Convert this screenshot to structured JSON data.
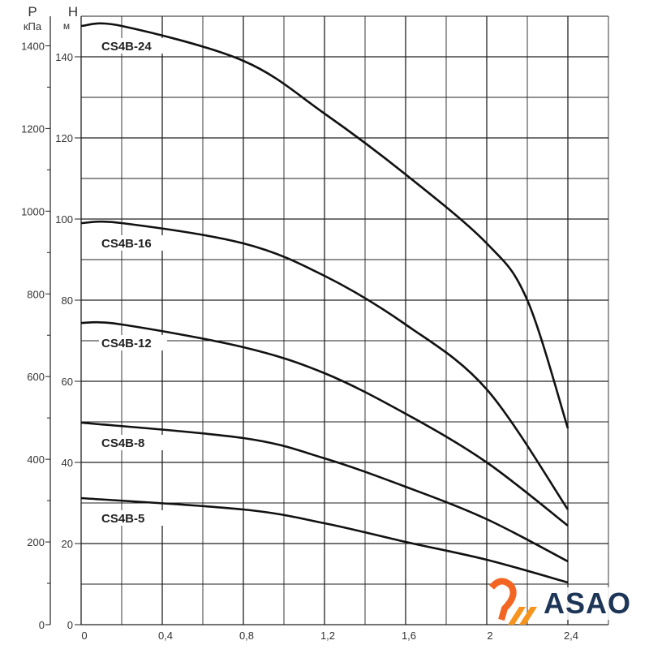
{
  "chart_data": {
    "type": "line",
    "xlim": [
      0,
      2.6
    ],
    "ylim": [
      0,
      150
    ],
    "x_ticks": [
      "0",
      "0,4",
      "0,8",
      "1,2",
      "1,6",
      "2",
      "2,4"
    ],
    "y_ticks": [
      "0",
      "20",
      "40",
      "60",
      "80",
      "100",
      "120",
      "140"
    ],
    "y2_ticks": [
      "0",
      "200",
      "400",
      "600",
      "800",
      "1000",
      "1200",
      "1400"
    ],
    "ylabel": "H",
    "yunit": "м",
    "y2label": "P",
    "y2unit": "кПа",
    "grid": true,
    "series": [
      {
        "name": "CS4B-24",
        "x": [
          0,
          0.2,
          0.8,
          1.2,
          1.6,
          2.0,
          2.2,
          2.4
        ],
        "y": [
          147.6,
          147.6,
          139,
          126,
          111,
          94,
          80,
          48.4
        ]
      },
      {
        "name": "CS4B-16",
        "x": [
          0,
          0.2,
          0.8,
          1.2,
          1.6,
          2.0,
          2.4
        ],
        "y": [
          99,
          99,
          94,
          86,
          74,
          58,
          28.4
        ]
      },
      {
        "name": "CS4B-12",
        "x": [
          0,
          0.2,
          0.8,
          1.2,
          1.6,
          2.0,
          2.4
        ],
        "y": [
          74.4,
          74,
          68.4,
          62,
          52,
          40,
          24.4
        ]
      },
      {
        "name": "CS4B-8",
        "x": [
          0,
          0.8,
          1.2,
          1.6,
          2.0,
          2.4
        ],
        "y": [
          49.8,
          46,
          41,
          34,
          26,
          15.6
        ]
      },
      {
        "name": "CS4B-5",
        "x": [
          0,
          0.8,
          1.2,
          1.6,
          2.0,
          2.4
        ],
        "y": [
          31.2,
          28.4,
          25,
          20.4,
          16,
          10.4
        ]
      }
    ]
  },
  "logo": {
    "text": "ASAO",
    "colors": {
      "mark": "#f26522",
      "text": "#1d3557"
    }
  }
}
